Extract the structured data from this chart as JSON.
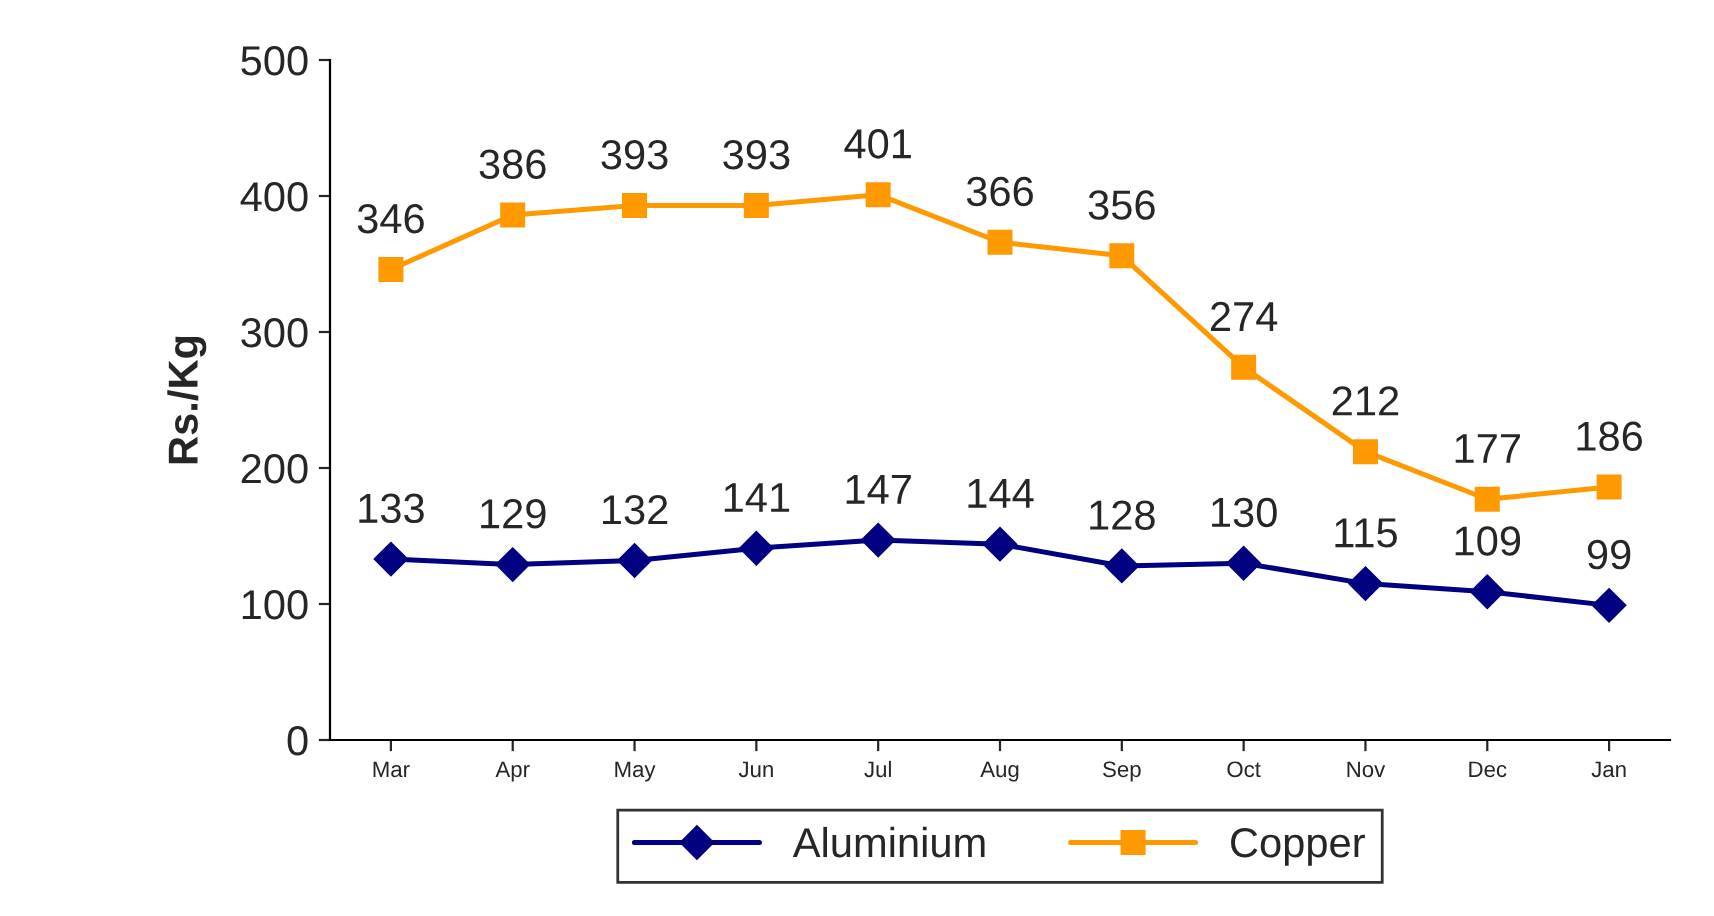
{
  "chart_data": {
    "type": "line",
    "ylabel": "Rs./Kg",
    "categories": [
      "Mar",
      "Apr",
      "May",
      "Jun",
      "Jul",
      "Aug",
      "Sep",
      "Oct",
      "Nov",
      "Dec",
      "Jan"
    ],
    "series": [
      {
        "name": "Aluminium",
        "color": "#000080",
        "marker": "diamond",
        "values": [
          133,
          129,
          132,
          141,
          147,
          144,
          128,
          130,
          115,
          109,
          99
        ]
      },
      {
        "name": "Copper",
        "color": "#ff9900",
        "marker": "square",
        "values": [
          346,
          386,
          393,
          393,
          401,
          366,
          356,
          274,
          212,
          177,
          186
        ]
      }
    ],
    "ylim": [
      0,
      500
    ],
    "yticks": [
      0,
      100,
      200,
      300,
      400,
      500
    ],
    "grid": false,
    "legend": "bottom",
    "data_labels": true,
    "line_style": "solid"
  }
}
